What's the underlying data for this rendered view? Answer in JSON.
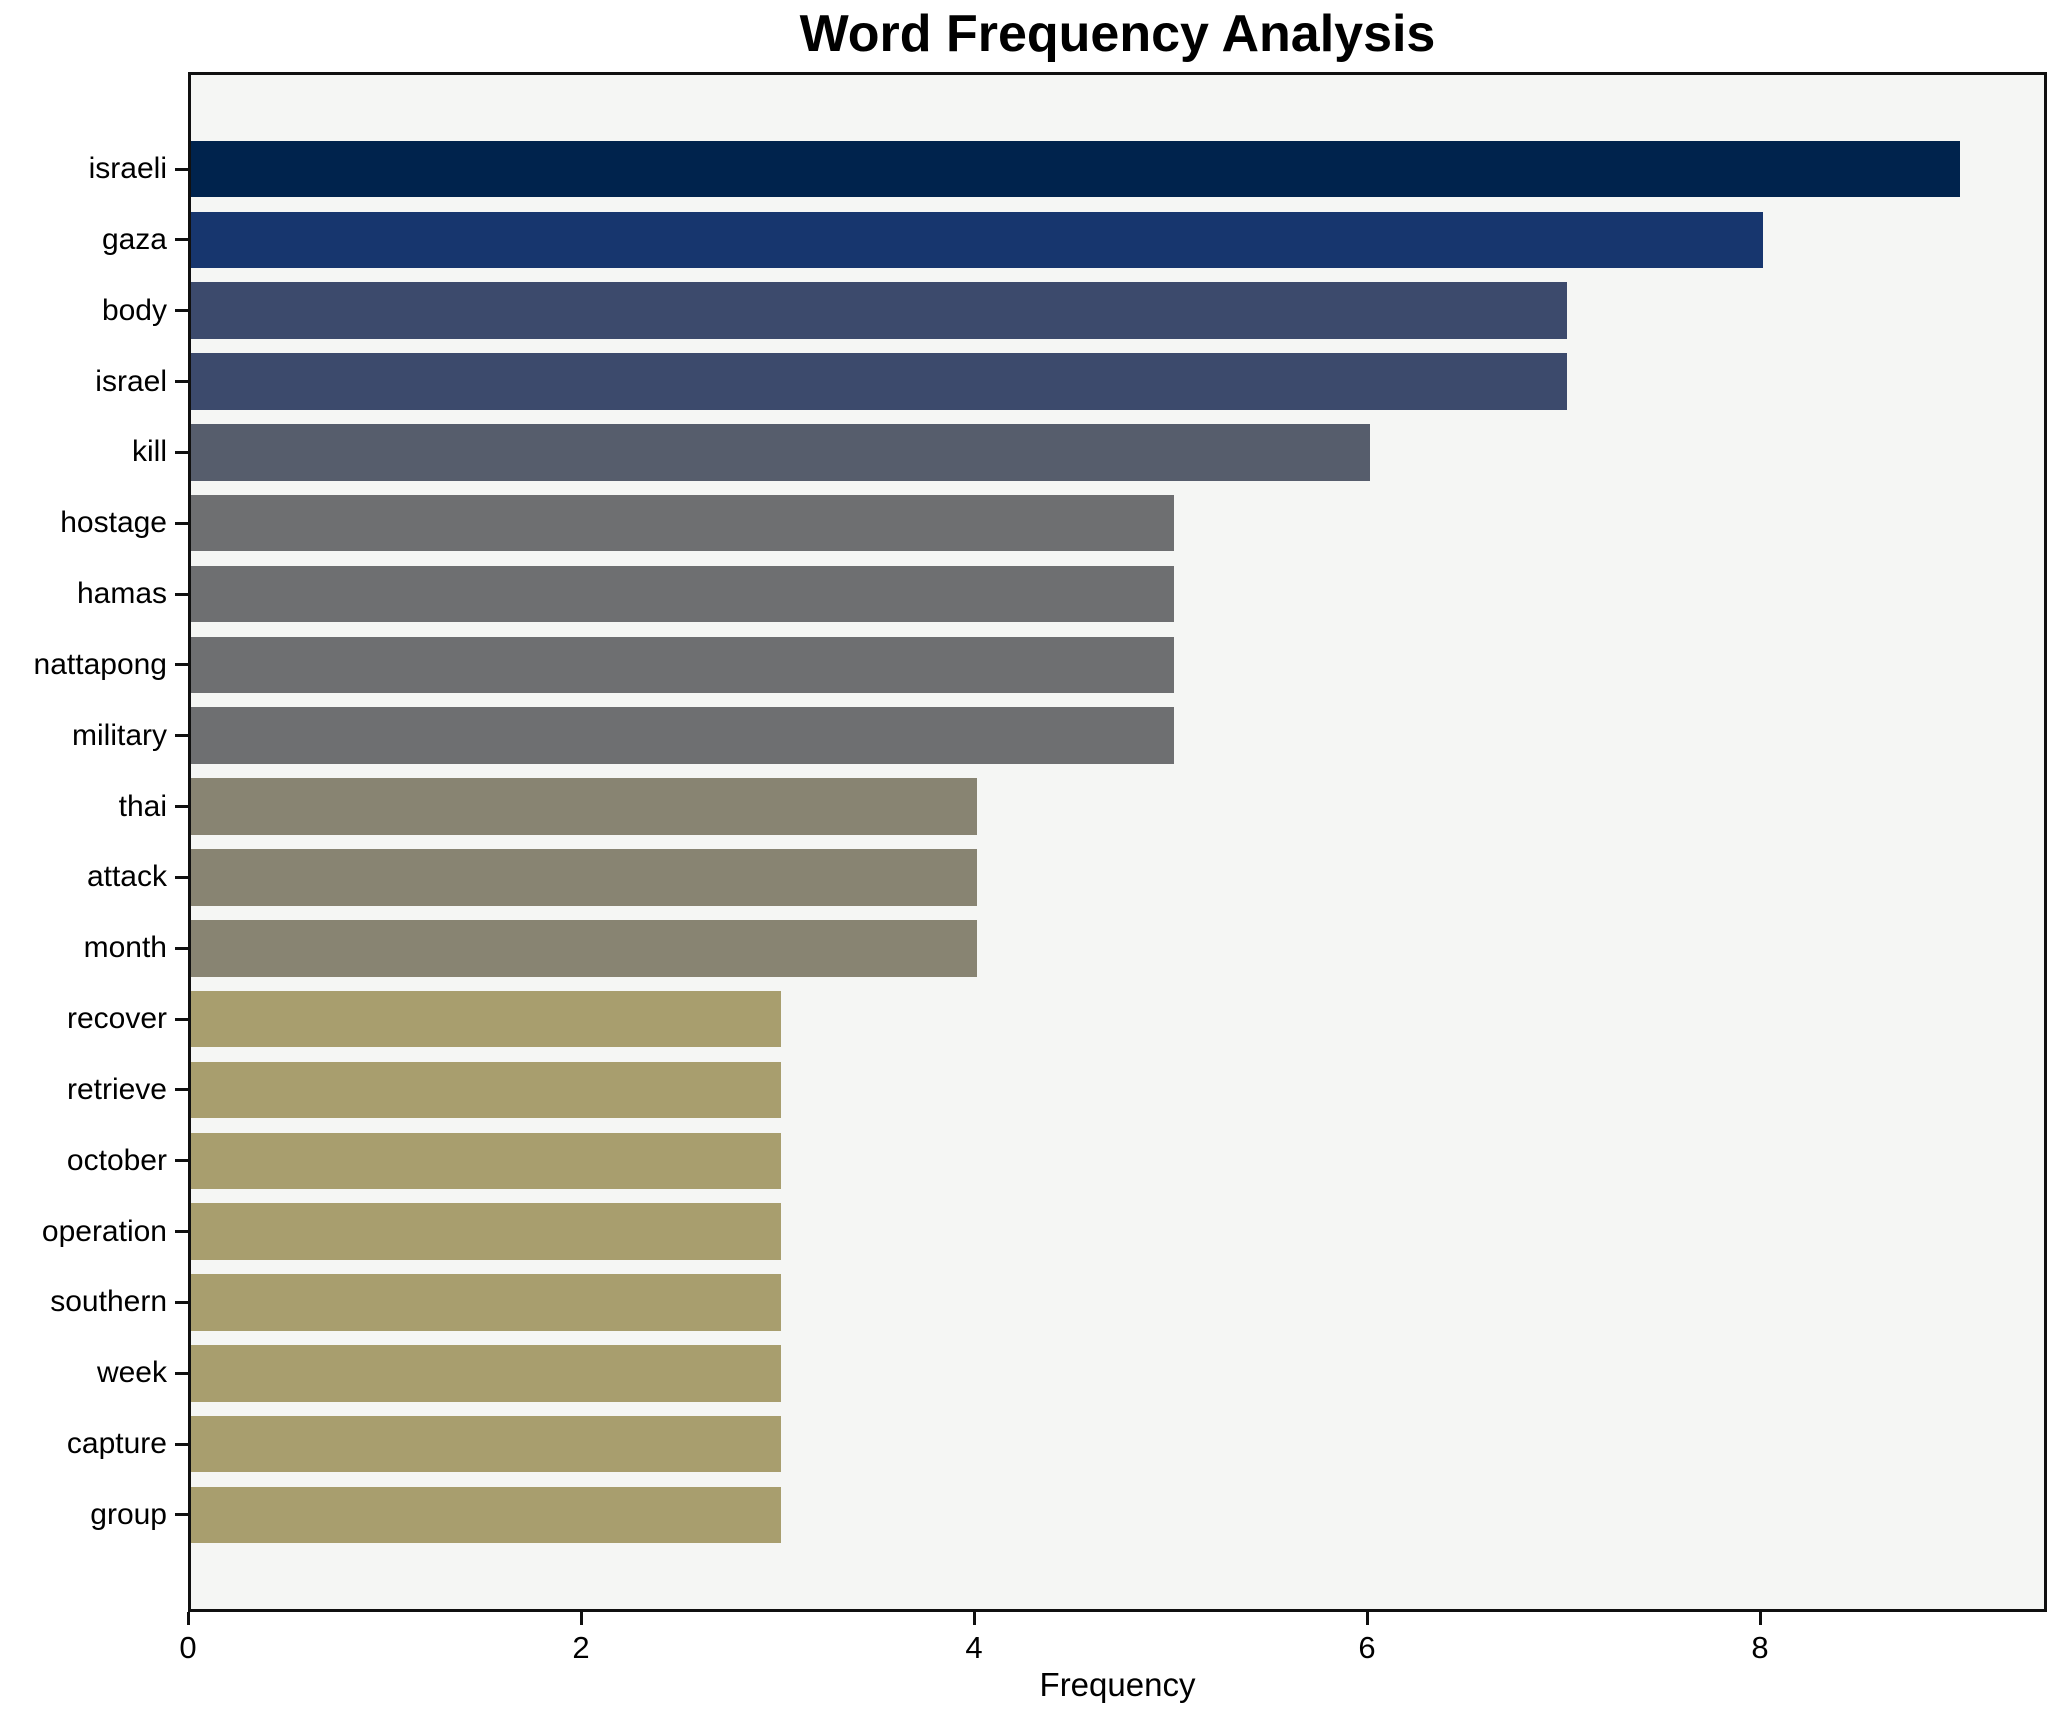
{
  "chart_data": {
    "type": "bar",
    "orientation": "horizontal",
    "title": "Word Frequency Analysis",
    "xlabel": "Frequency",
    "ylabel": "",
    "categories": [
      "israeli",
      "gaza",
      "body",
      "israel",
      "kill",
      "hostage",
      "hamas",
      "nattapong",
      "military",
      "thai",
      "attack",
      "month",
      "recover",
      "retrieve",
      "october",
      "operation",
      "southern",
      "week",
      "capture",
      "group"
    ],
    "values": [
      9,
      8,
      7,
      7,
      6,
      5,
      5,
      5,
      5,
      4,
      4,
      4,
      3,
      3,
      3,
      3,
      3,
      3,
      3,
      3
    ],
    "bar_colors": [
      "#00234d",
      "#17366e",
      "#3c4a6c",
      "#3c4a6c",
      "#565d6c",
      "#6e6f71",
      "#6e6f71",
      "#6e6f71",
      "#6e6f71",
      "#888472",
      "#888472",
      "#888472",
      "#a89e6e",
      "#a89e6e",
      "#a89e6e",
      "#a89e6e",
      "#a89e6e",
      "#a89e6e",
      "#a89e6e",
      "#a89e6e"
    ],
    "x_ticks": [
      0,
      2,
      4,
      6,
      8
    ],
    "xlim": [
      0,
      9.46
    ],
    "grid": false,
    "legend": "none",
    "colormap": "cividis",
    "plot_background": "#f5f6f4",
    "spine_color": "#101010",
    "text_color": "#000000"
  }
}
